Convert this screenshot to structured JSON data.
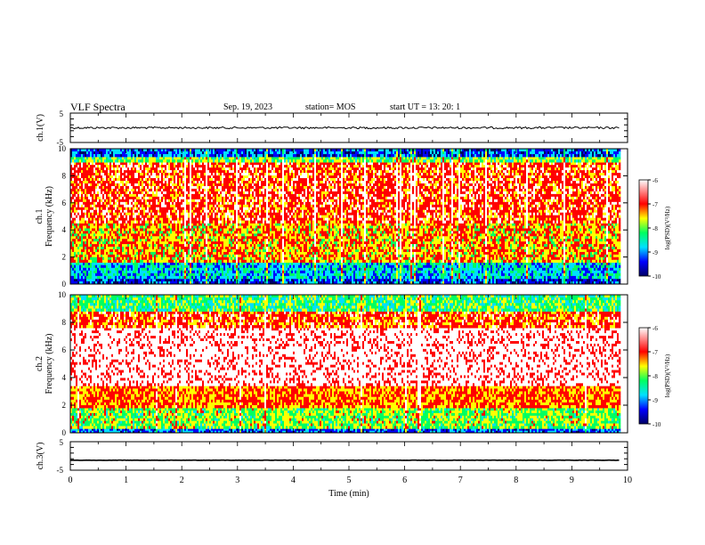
{
  "header": {
    "title": "VLF Spectra",
    "date": "Sep. 19, 2023",
    "station": "station= MOS",
    "start_ut": "start UT =   13: 20: 1"
  },
  "chart_data": [
    {
      "type": "line",
      "panel": "ch1-voltage",
      "ylabel": "ch.1(V)",
      "ylim": [
        -5,
        5
      ],
      "y_ticks": [
        "5",
        "-5"
      ],
      "series": [
        {
          "approx_level": 0,
          "description_points_x_min": [
            0,
            9.85
          ]
        }
      ],
      "grid": false
    },
    {
      "type": "heatmap",
      "panel": "ch1-spectrogram",
      "ylabel_channel": "ch.1",
      "ylabel": "Frequency (kHz)",
      "ylim": [
        0,
        10
      ],
      "y_ticks": [
        "0",
        "2",
        "4",
        "6",
        "8",
        "10"
      ],
      "x_range_min": [
        0,
        9.85
      ],
      "bands": [
        {
          "f_low": 0,
          "f_high": 0.4,
          "level": -9.4
        },
        {
          "f_low": 0.4,
          "f_high": 1.6,
          "level": -8.8
        },
        {
          "f_low": 1.6,
          "f_high": 4.5,
          "level": -7.4
        },
        {
          "f_low": 4.5,
          "f_high": 9.0,
          "level": -6.9
        },
        {
          "f_low": 9.0,
          "f_high": 9.4,
          "level": -8.0
        },
        {
          "f_low": 9.4,
          "f_high": 10,
          "level": -9.3
        }
      ],
      "colorbar": {
        "label": "log(PSD)(V²/Hz)",
        "ticks": [
          "-6",
          "-7",
          "-8",
          "-9",
          "-10"
        ],
        "range": [
          -10,
          -6
        ]
      }
    },
    {
      "type": "heatmap",
      "panel": "ch2-spectrogram",
      "ylabel_channel": "ch.2",
      "ylabel": "Frequency (kHz)",
      "ylim": [
        0,
        10
      ],
      "y_ticks": [
        "0",
        "2",
        "4",
        "6",
        "8",
        "10"
      ],
      "x_range_min": [
        0,
        9.85
      ],
      "bands": [
        {
          "f_low": 0,
          "f_high": 0.3,
          "level": -9.2
        },
        {
          "f_low": 0.3,
          "f_high": 1.8,
          "level": -7.9
        },
        {
          "f_low": 1.8,
          "f_high": 3.4,
          "level": -7.2
        },
        {
          "f_low": 3.4,
          "f_high": 7.6,
          "level": -6.2
        },
        {
          "f_low": 7.6,
          "f_high": 8.8,
          "level": -7.0
        },
        {
          "f_low": 8.8,
          "f_high": 10,
          "level": -8.2
        }
      ],
      "colorbar": {
        "label": "log(PSD)(V²/Hz)",
        "ticks": [
          "-6",
          "-7",
          "-8",
          "-9",
          "-10"
        ],
        "range": [
          -10,
          -6
        ]
      }
    },
    {
      "type": "line",
      "panel": "ch3-voltage",
      "ylabel": "ch.3(V)",
      "ylim": [
        -5,
        5
      ],
      "y_ticks": [
        "5",
        "-5"
      ],
      "series": [
        {
          "approx_level": -1.5,
          "description_points_x_min": [
            0,
            9.85
          ]
        }
      ],
      "xlabel": "Time (min)",
      "xlim": [
        0,
        10
      ],
      "x_ticks": [
        "0",
        "1",
        "2",
        "3",
        "4",
        "5",
        "6",
        "7",
        "8",
        "9",
        "10"
      ]
    }
  ],
  "colors": {
    "scale": [
      "#000066",
      "#0000ff",
      "#00e0ff",
      "#00ff60",
      "#ffff00",
      "#ff0000",
      "#ffffff"
    ]
  }
}
